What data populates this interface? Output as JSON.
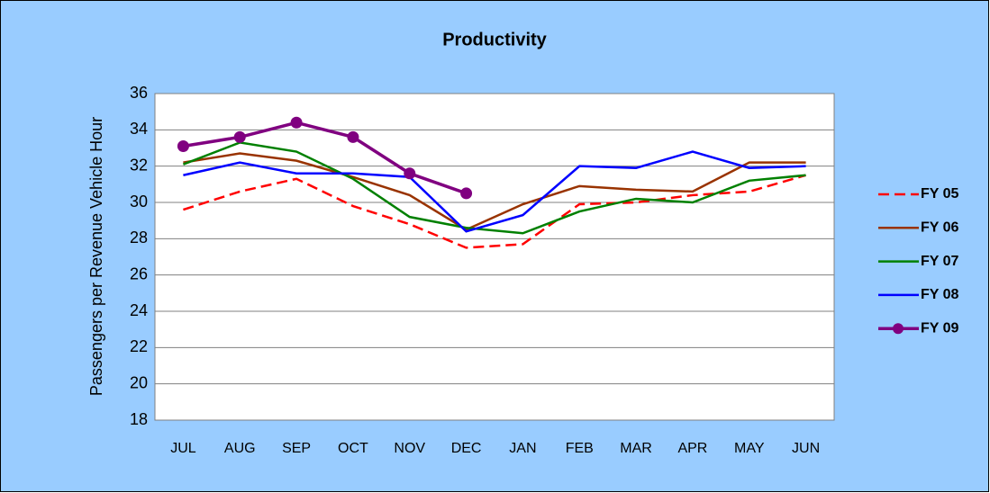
{
  "chart_data": {
    "type": "line",
    "title": "Productivity",
    "y_label": "Passengers per Revenue Vehicle Hour",
    "categories": [
      "JUL",
      "AUG",
      "SEP",
      "OCT",
      "NOV",
      "DEC",
      "JAN",
      "FEB",
      "MAR",
      "APR",
      "MAY",
      "JUN"
    ],
    "series": [
      {
        "name": "FY 05",
        "color": "#ff0000",
        "line_style": "dashed",
        "values": [
          29.6,
          30.6,
          31.3,
          29.8,
          28.8,
          27.5,
          27.7,
          29.9,
          30.0,
          30.4,
          30.6,
          31.5
        ]
      },
      {
        "name": "FY 06",
        "color": "#993300",
        "values": [
          32.2,
          32.7,
          32.3,
          31.4,
          30.4,
          28.5,
          29.9,
          30.9,
          30.7,
          30.6,
          32.2,
          32.2
        ]
      },
      {
        "name": "FY 07",
        "color": "#008000",
        "values": [
          32.1,
          33.3,
          32.8,
          31.3,
          29.2,
          28.6,
          28.3,
          29.5,
          30.2,
          30.0,
          31.2,
          31.5
        ]
      },
      {
        "name": "FY 08",
        "color": "#0000ff",
        "values": [
          31.5,
          32.2,
          31.6,
          31.6,
          31.4,
          28.4,
          29.3,
          32.0,
          31.9,
          32.8,
          31.9,
          32.0
        ]
      },
      {
        "name": "FY 09",
        "color": "#800080",
        "marker": "circle",
        "values": [
          33.1,
          33.6,
          34.4,
          33.6,
          31.6,
          30.5,
          null,
          null,
          null,
          null,
          null,
          null
        ]
      }
    ],
    "ylim": [
      18,
      36
    ],
    "yticks": [
      18,
      20,
      22,
      24,
      26,
      28,
      30,
      32,
      34,
      36
    ],
    "grid": true,
    "legend": "right"
  }
}
